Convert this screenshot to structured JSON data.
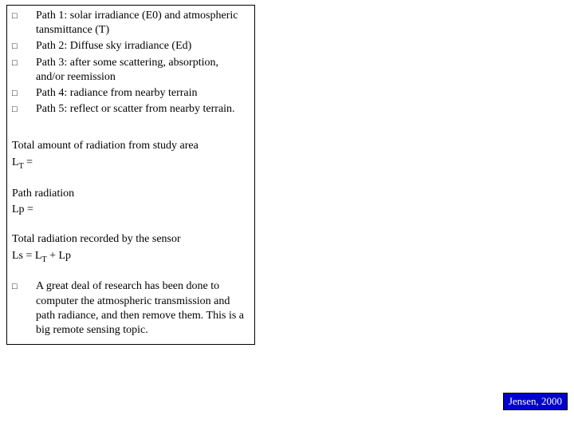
{
  "bullets": {
    "mark": "□",
    "items": [
      "Path 1: solar irradiance (E0) and atmospheric tansmittance (T)",
      "Path 2: Diffuse sky irradiance (Ed)",
      "Path 3: after some scattering, absorption, and/or reemission",
      "Path 4: radiance from nearby terrain",
      "Path 5: reflect or scatter from nearby terrain."
    ]
  },
  "sections": {
    "total_area_label": "Total amount of radiation from study area",
    "lt_eq": "L",
    "lt_sub": "T",
    "lt_tail": " =",
    "path_rad_label": "Path radiation",
    "lp_eq": "Lp =",
    "sensor_label": "Total radiation recorded by the sensor",
    "ls_prefix": "Ls = L",
    "ls_sub": "T",
    "ls_tail": " + Lp"
  },
  "closing": {
    "text": "A great deal of research has been done to computer the atmospheric transmission and path radiance, and then remove them. This is a big remote sensing topic."
  },
  "citation": {
    "text": "Jensen, 2000",
    "bg": "#0000cc",
    "fg": "#ffffff"
  }
}
